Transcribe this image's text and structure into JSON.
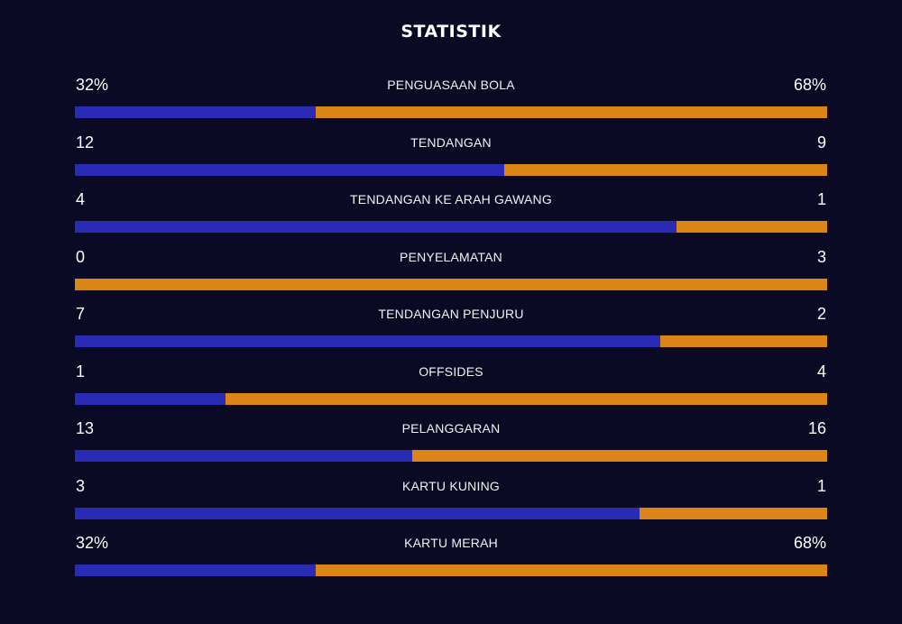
{
  "title": "STATISTIK",
  "colors": {
    "background": "#0a0a24",
    "home": "#2a2bb5",
    "away": "#dc8517"
  },
  "stats": [
    {
      "label": "PENGUASAAN BOLA",
      "home": "32%",
      "away": "68%",
      "home_share": 0.32
    },
    {
      "label": "TENDANGAN",
      "home": "12",
      "away": "9",
      "home_share": 0.571
    },
    {
      "label": "TENDANGAN KE ARAH GAWANG",
      "home": "4",
      "away": "1",
      "home_share": 0.8
    },
    {
      "label": "PENYELAMATAN",
      "home": "0",
      "away": "3",
      "home_share": 0.0
    },
    {
      "label": "TENDANGAN PENJURU",
      "home": "7",
      "away": "2",
      "home_share": 0.778
    },
    {
      "label": "OFFSIDES",
      "home": "1",
      "away": "4",
      "home_share": 0.2
    },
    {
      "label": "PELANGGARAN",
      "home": "13",
      "away": "16",
      "home_share": 0.448
    },
    {
      "label": "KARTU KUNING",
      "home": "3",
      "away": "1",
      "home_share": 0.75
    },
    {
      "label": "KARTU MERAH",
      "home": "32%",
      "away": "68%",
      "home_share": 0.32
    }
  ]
}
